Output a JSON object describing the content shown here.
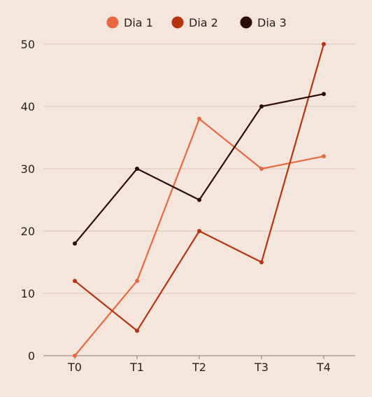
{
  "chart_data": {
    "type": "line",
    "categories": [
      "T0",
      "T1",
      "T2",
      "T3",
      "T4"
    ],
    "series": [
      {
        "name": "Dia 1",
        "color": "#e8693f",
        "values": [
          0,
          12,
          38,
          30,
          32
        ]
      },
      {
        "name": "Dia 2",
        "color": "#b8330f",
        "values": [
          12,
          4,
          20,
          15,
          50
        ]
      },
      {
        "name": "Dia 3",
        "color": "#2e0c06",
        "values": [
          18,
          30,
          25,
          40,
          42
        ]
      }
    ],
    "title": "",
    "xlabel": "",
    "ylabel": "",
    "ylim": [
      0,
      50
    ],
    "yticks": [
      0,
      10,
      20,
      30,
      40,
      50
    ],
    "grid": true,
    "legend": "top-center"
  }
}
